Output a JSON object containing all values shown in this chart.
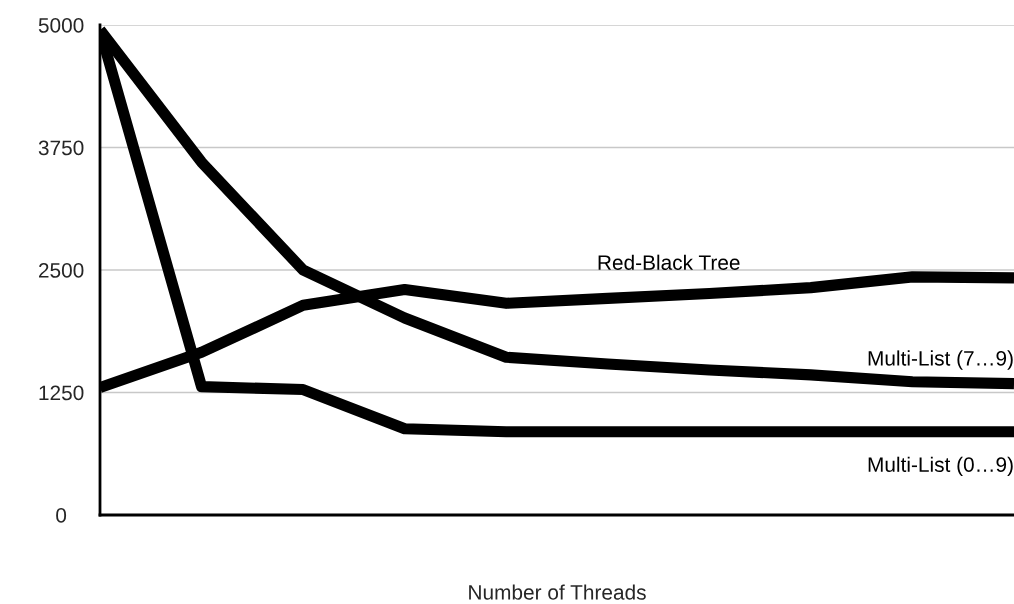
{
  "chart_data": {
    "type": "line",
    "xlabel": "Number of Threads",
    "categories": [
      null,
      null,
      null,
      null,
      null,
      null,
      null,
      null,
      null,
      null
    ],
    "series": [
      {
        "name": "Red-Black Tree",
        "color": "#000000",
        "values": [
          1300,
          1660,
          2140,
          2300,
          2160,
          2210,
          2260,
          2320,
          2430,
          2420
        ]
      },
      {
        "name": "Multi-List (7…9)",
        "color": "#000000",
        "values": [
          4950,
          3600,
          2500,
          2010,
          1610,
          1540,
          1480,
          1430,
          1360,
          1340
        ]
      },
      {
        "name": "Multi-List (0…9)",
        "color": "#000000",
        "values": [
          4950,
          1310,
          1280,
          880,
          850,
          850,
          850,
          850,
          850,
          850
        ]
      }
    ],
    "ylim": [
      0,
      5000
    ],
    "yticks": [
      0,
      1250,
      2500,
      3750,
      5000
    ],
    "grid": "y",
    "legend": false,
    "tick_labels": "y",
    "marker": "none",
    "line_style": "solid"
  }
}
